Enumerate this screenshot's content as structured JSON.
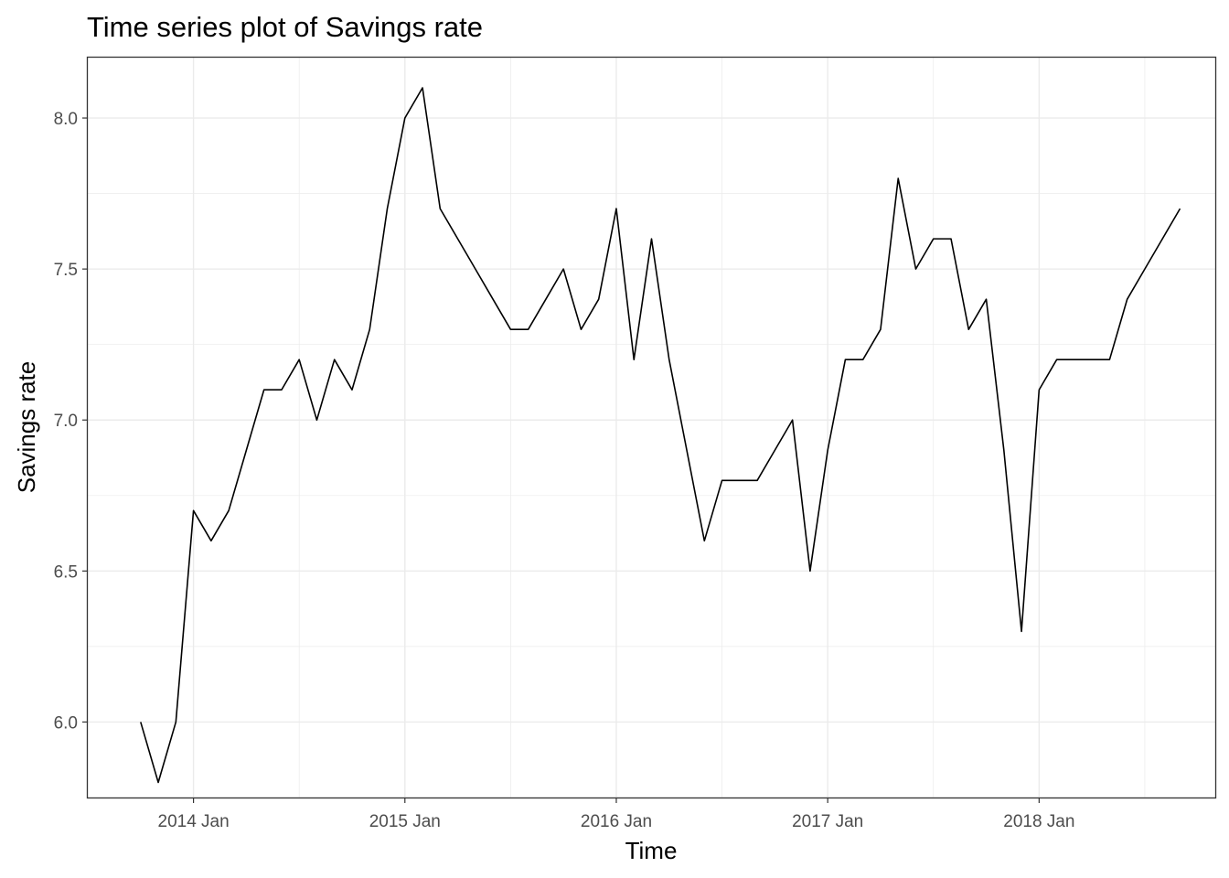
{
  "chart_data": {
    "type": "line",
    "title": "Time series plot of Savings rate",
    "xlabel": "Time",
    "ylabel": "Savings rate",
    "x_ticks": [
      "2014 Jan",
      "2015 Jan",
      "2016 Jan",
      "2017 Jan",
      "2018 Jan"
    ],
    "y_ticks": [
      "6.0",
      "6.5",
      "7.0",
      "7.5",
      "8.0"
    ],
    "ylim": [
      5.75,
      8.2
    ],
    "xlim": [
      "2013-07",
      "2018-11"
    ],
    "grid": true,
    "theme": "bw",
    "series": [
      {
        "color": "#000000",
        "x": [
          "2013-10",
          "2013-11",
          "2013-12",
          "2014-01",
          "2014-02",
          "2014-03",
          "2014-04",
          "2014-05",
          "2014-06",
          "2014-07",
          "2014-08",
          "2014-09",
          "2014-10",
          "2014-11",
          "2014-12",
          "2015-01",
          "2015-02",
          "2015-03",
          "2015-04",
          "2015-05",
          "2015-06",
          "2015-07",
          "2015-08",
          "2015-09",
          "2015-10",
          "2015-11",
          "2015-12",
          "2016-01",
          "2016-02",
          "2016-03",
          "2016-04",
          "2016-05",
          "2016-06",
          "2016-07",
          "2016-08",
          "2016-09",
          "2016-10",
          "2016-11",
          "2016-12",
          "2017-01",
          "2017-02",
          "2017-03",
          "2017-04",
          "2017-05",
          "2017-06",
          "2017-07",
          "2017-08",
          "2017-09",
          "2017-10",
          "2017-11",
          "2017-12",
          "2018-01",
          "2018-02",
          "2018-03",
          "2018-04",
          "2018-05",
          "2018-06",
          "2018-07",
          "2018-08",
          "2018-09"
        ],
        "values": [
          6.0,
          5.8,
          6.0,
          6.7,
          6.6,
          6.7,
          6.9,
          7.1,
          7.1,
          7.2,
          7.0,
          7.2,
          7.1,
          7.3,
          7.7,
          8.0,
          8.1,
          7.7,
          7.6,
          7.5,
          7.4,
          7.3,
          7.3,
          7.4,
          7.5,
          7.3,
          7.4,
          7.7,
          7.2,
          7.6,
          7.2,
          6.9,
          6.6,
          6.8,
          6.8,
          6.8,
          6.9,
          7.0,
          6.5,
          6.9,
          7.2,
          7.2,
          7.3,
          7.8,
          7.5,
          7.6,
          7.6,
          7.3,
          7.4,
          6.9,
          6.3,
          7.1,
          7.2,
          7.2,
          7.2,
          7.2,
          7.4,
          7.5,
          7.6,
          7.7
        ]
      }
    ]
  }
}
